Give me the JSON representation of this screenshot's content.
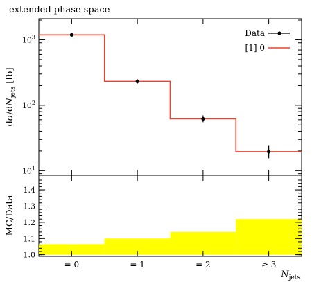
{
  "chart_data": [
    {
      "type": "line",
      "title": "extended phase space",
      "ylabel": "dσ/dN_jets [fb]",
      "yscale": "log",
      "ylim": [
        8.5,
        2100
      ],
      "categories": [
        "= 0",
        "= 1",
        "= 2",
        "≥ 3"
      ],
      "yticks": [
        {
          "value": 10,
          "base": "10",
          "exp": "1"
        },
        {
          "value": 100,
          "base": "10",
          "exp": "2"
        },
        {
          "value": 1000,
          "base": "10",
          "exp": "3"
        }
      ],
      "legend_position": "top-right",
      "series": [
        {
          "name": "Data",
          "style": "points-with-errors",
          "color": "#000000",
          "values": [
            1190,
            232,
            62,
            19.5
          ],
          "err_low": [
            30,
            18,
            7,
            4
          ],
          "err_high": [
            30,
            18,
            8,
            5
          ]
        },
        {
          "name": "[1] 0",
          "style": "histogram-step",
          "color": "#e8432f",
          "values": [
            1190,
            232,
            62,
            19.5
          ]
        }
      ]
    },
    {
      "type": "area",
      "ylabel": "MC/Data",
      "xlabel": "N_jets",
      "categories": [
        "= 0",
        "= 1",
        "= 2",
        "≥ 3"
      ],
      "ylim": [
        0.99,
        1.49
      ],
      "yticks": [
        "1.0",
        "1.1",
        "1.2",
        "1.3",
        "1.4"
      ],
      "band": {
        "color": "#ffff00",
        "low": [
          1.0,
          1.0,
          1.0,
          1.0
        ],
        "high": [
          1.065,
          1.1,
          1.14,
          1.22
        ]
      },
      "reference_line": 1.0
    }
  ]
}
